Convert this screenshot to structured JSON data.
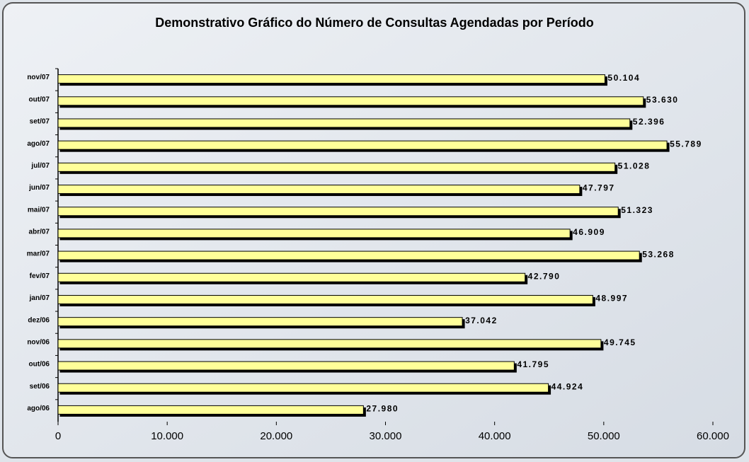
{
  "chart_data": {
    "type": "bar",
    "orientation": "horizontal",
    "title": "Demonstrativo Gráfico do Número de Consultas Agendadas por Período",
    "categories": [
      "ago/06",
      "set/06",
      "out/06",
      "nov/06",
      "dez/06",
      "jan/07",
      "fev/07",
      "mar/07",
      "abr/07",
      "mai/07",
      "jun/07",
      "jul/07",
      "ago/07",
      "set/07",
      "out/07",
      "nov/07"
    ],
    "values": [
      27980,
      44924,
      41795,
      49745,
      37042,
      48997,
      42790,
      53268,
      46909,
      51323,
      47797,
      51028,
      55789,
      52396,
      53630,
      50104
    ],
    "value_labels": [
      "27.980",
      "44.924",
      "41.795",
      "49.745",
      "37.042",
      "48.997",
      "42.790",
      "53.268",
      "46.909",
      "51.323",
      "47.797",
      "51.028",
      "55.789",
      "52.396",
      "53.630",
      "50.104"
    ],
    "color": "#ffff99",
    "xlim": [
      0,
      60000
    ],
    "xticks": [
      0,
      {
        "value": 10000,
        "label": "10.000"
      },
      {
        "value": 20000,
        "label": "20.000"
      },
      {
        "value": 30000,
        "label": "30.000"
      },
      {
        "value": 40000,
        "label": "40.000"
      },
      {
        "value": 50000,
        "label": "50.000"
      },
      {
        "value": 60000,
        "label": "60.000"
      }
    ],
    "grid": false
  }
}
